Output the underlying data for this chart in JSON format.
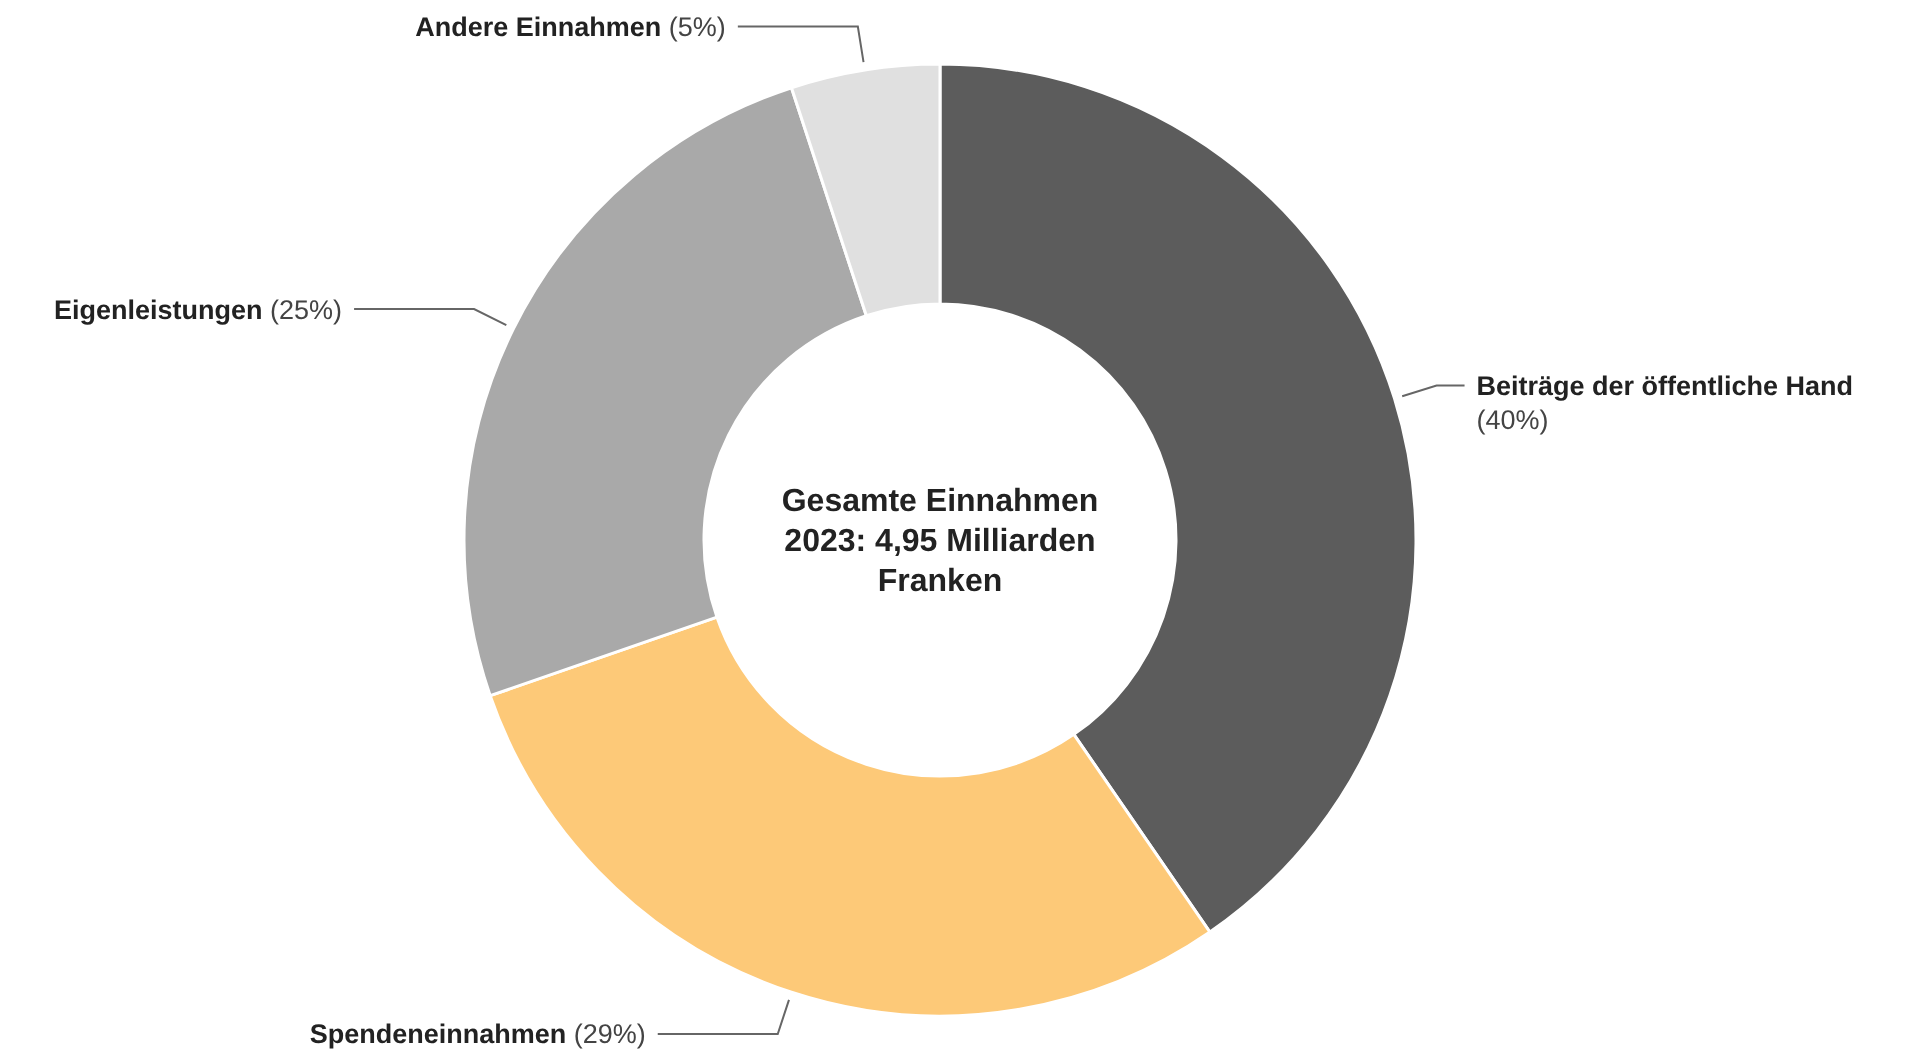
{
  "chart_data": {
    "type": "donut",
    "categories": [
      "Beiträge der öffentliche Hand",
      "Spendeneinnahmen",
      "Eigenleistungen",
      "Andere Einnahmen"
    ],
    "values": [
      40,
      29,
      25,
      5
    ],
    "colors": [
      "#5c5c5c",
      "#fdc978",
      "#a9a9a9",
      "#e0e0e0"
    ],
    "value_labels": [
      "(40%)",
      "(29%)",
      "(25%)",
      "(5%)"
    ],
    "annotations": [
      "Gesamte Einnahmen 2023: 4,95 Milliarden Franken"
    ]
  }
}
